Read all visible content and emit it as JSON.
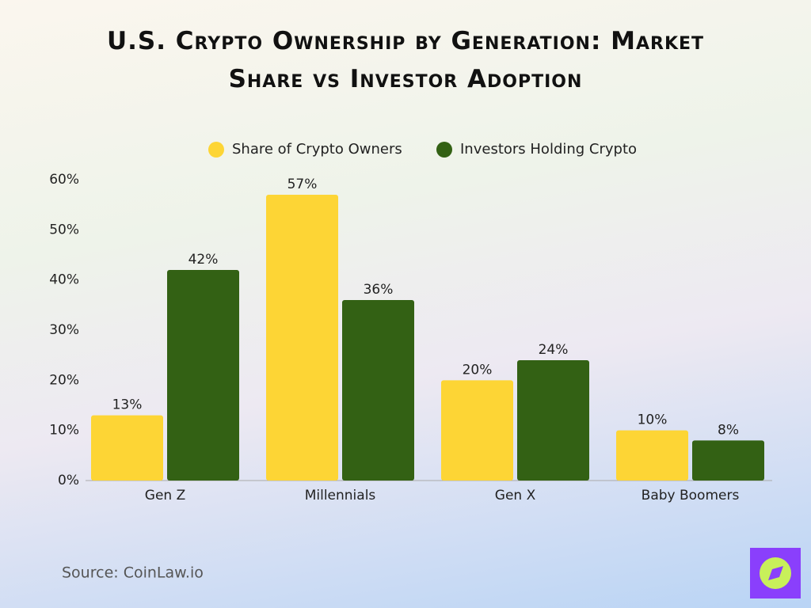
{
  "chart_data": {
    "type": "grouped_bar",
    "title": "U.S. Crypto Ownership by Generation: Market Share vs Investor Adoption",
    "categories": [
      "Gen Z",
      "Millennials",
      "Gen X",
      "Baby Boomers"
    ],
    "series": [
      {
        "name": "Share of Crypto Owners",
        "color": "#fdd535",
        "values": [
          13,
          57,
          20,
          10
        ],
        "value_labels": [
          "13%",
          "57%",
          "20%",
          "10%"
        ]
      },
      {
        "name": "Investors Holding Crypto",
        "color": "#336114",
        "values": [
          42,
          36,
          24,
          8
        ],
        "value_labels": [
          "42%",
          "36%",
          "24%",
          "8%"
        ]
      }
    ],
    "ylim": [
      0,
      60
    ],
    "yticks": [
      {
        "value": 0,
        "label": "0%"
      },
      {
        "value": 10,
        "label": "10%"
      },
      {
        "value": 20,
        "label": "20%"
      },
      {
        "value": 30,
        "label": "30%"
      },
      {
        "value": 40,
        "label": "40%"
      },
      {
        "value": 50,
        "label": "50%"
      },
      {
        "value": 60,
        "label": "60%"
      }
    ],
    "legend": "top",
    "source": "Source: CoinLaw.io"
  }
}
